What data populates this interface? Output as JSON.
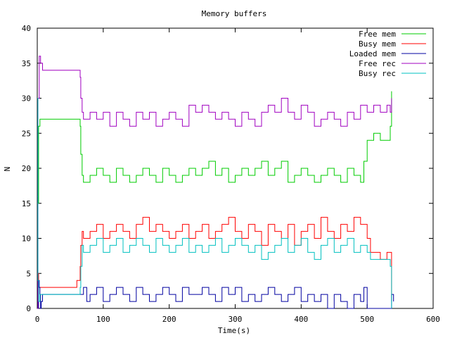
{
  "chart_data": {
    "type": "line",
    "title": "Memory buffers",
    "xlabel": "Time(s)",
    "ylabel": "N",
    "xlim": [
      0,
      600
    ],
    "ylim": [
      0,
      40
    ],
    "xticks": [
      "0",
      "100",
      "200",
      "300",
      "400",
      "500",
      "600"
    ],
    "yticks": [
      "0",
      "5",
      "10",
      "15",
      "20",
      "25",
      "30",
      "35",
      "40"
    ],
    "grid": false,
    "legend_position": "top-right",
    "series": [
      {
        "name": "Free mem",
        "color": "#00cc00",
        "x": [
          0,
          2,
          4,
          10,
          20,
          40,
          60,
          65,
          66,
          68,
          70,
          80,
          90,
          100,
          110,
          120,
          130,
          140,
          150,
          160,
          170,
          180,
          190,
          200,
          210,
          220,
          230,
          240,
          250,
          260,
          270,
          280,
          290,
          300,
          310,
          320,
          330,
          340,
          350,
          360,
          370,
          380,
          390,
          400,
          410,
          420,
          430,
          440,
          450,
          460,
          470,
          480,
          490,
          495,
          500,
          510,
          520,
          530,
          535,
          537
        ],
        "y": [
          15,
          26,
          27,
          27,
          27,
          27,
          27,
          26,
          22,
          19,
          18,
          19,
          20,
          19,
          18,
          20,
          19,
          18,
          19,
          20,
          19,
          18,
          20,
          19,
          18,
          19,
          20,
          19,
          20,
          21,
          19,
          20,
          18,
          19,
          20,
          19,
          20,
          21,
          19,
          20,
          21,
          18,
          19,
          20,
          19,
          18,
          19,
          20,
          19,
          18,
          20,
          19,
          18,
          21,
          24,
          25,
          24,
          24,
          26,
          31
        ]
      },
      {
        "name": "Busy mem",
        "color": "#ff0000",
        "x": [
          0,
          2,
          4,
          20,
          40,
          55,
          60,
          65,
          66,
          68,
          70,
          80,
          90,
          100,
          110,
          120,
          130,
          140,
          150,
          160,
          170,
          180,
          190,
          200,
          210,
          220,
          230,
          240,
          250,
          260,
          270,
          280,
          290,
          300,
          310,
          320,
          330,
          340,
          350,
          360,
          370,
          380,
          390,
          400,
          410,
          420,
          430,
          440,
          450,
          460,
          470,
          480,
          490,
          500,
          505,
          510,
          520,
          530,
          535,
          537
        ],
        "y": [
          5,
          3,
          3,
          3,
          3,
          3,
          4,
          6,
          9,
          11,
          10,
          11,
          12,
          10,
          11,
          12,
          11,
          10,
          12,
          13,
          11,
          12,
          11,
          10,
          11,
          12,
          10,
          11,
          12,
          10,
          11,
          12,
          13,
          11,
          10,
          12,
          11,
          9,
          12,
          11,
          10,
          12,
          9,
          11,
          12,
          10,
          13,
          11,
          10,
          12,
          11,
          13,
          12,
          10,
          8,
          8,
          7,
          8,
          8,
          1
        ]
      },
      {
        "name": "Loaded mem",
        "color": "#0000a0",
        "x": [
          0,
          1,
          2,
          3,
          4,
          5,
          6,
          8,
          10,
          20,
          40,
          60,
          65,
          70,
          75,
          80,
          90,
          100,
          110,
          120,
          130,
          140,
          150,
          160,
          170,
          180,
          190,
          200,
          210,
          220,
          230,
          240,
          250,
          260,
          270,
          280,
          290,
          300,
          310,
          320,
          330,
          340,
          350,
          360,
          370,
          380,
          390,
          400,
          410,
          420,
          430,
          440,
          450,
          460,
          470,
          480,
          490,
          495,
          500,
          505,
          510,
          520,
          530,
          535,
          537,
          540
        ],
        "y": [
          16,
          0,
          4,
          3,
          2,
          0,
          1,
          2,
          2,
          2,
          2,
          2,
          2,
          3,
          1,
          2,
          3,
          1,
          2,
          3,
          2,
          1,
          3,
          2,
          1,
          2,
          3,
          2,
          1,
          3,
          2,
          2,
          3,
          2,
          1,
          3,
          2,
          3,
          1,
          2,
          1,
          2,
          3,
          2,
          1,
          2,
          3,
          1,
          2,
          1,
          2,
          0,
          2,
          1,
          0,
          2,
          1,
          3,
          0,
          0,
          0,
          0,
          0,
          0,
          2,
          1
        ]
      },
      {
        "name": "Free rec",
        "color": "#a000c0",
        "x": [
          0,
          1,
          3,
          5,
          8,
          10,
          20,
          40,
          60,
          65,
          66,
          68,
          70,
          80,
          90,
          100,
          110,
          120,
          130,
          140,
          150,
          160,
          170,
          180,
          190,
          200,
          210,
          220,
          230,
          240,
          250,
          260,
          270,
          280,
          290,
          300,
          310,
          320,
          330,
          340,
          350,
          360,
          370,
          380,
          390,
          400,
          410,
          420,
          430,
          440,
          450,
          460,
          470,
          480,
          490,
          500,
          510,
          520,
          530,
          535,
          537
        ],
        "y": [
          0,
          30,
          36,
          35,
          34,
          34,
          34,
          34,
          34,
          33,
          30,
          28,
          27,
          28,
          27,
          28,
          26,
          28,
          27,
          26,
          28,
          27,
          28,
          26,
          27,
          28,
          27,
          26,
          29,
          28,
          29,
          28,
          27,
          28,
          27,
          26,
          28,
          27,
          26,
          28,
          29,
          28,
          30,
          28,
          27,
          29,
          28,
          26,
          27,
          28,
          27,
          26,
          28,
          27,
          29,
          28,
          29,
          28,
          29,
          28,
          30
        ]
      },
      {
        "name": "Busy rec",
        "color": "#00c0c0",
        "x": [
          0,
          1,
          2,
          4,
          6,
          10,
          20,
          40,
          60,
          65,
          66,
          68,
          70,
          80,
          90,
          100,
          110,
          120,
          130,
          140,
          150,
          160,
          170,
          180,
          190,
          200,
          210,
          220,
          230,
          240,
          250,
          260,
          270,
          280,
          290,
          300,
          310,
          320,
          330,
          340,
          350,
          360,
          370,
          380,
          390,
          400,
          410,
          420,
          430,
          440,
          450,
          460,
          470,
          480,
          490,
          500,
          505,
          510,
          520,
          530,
          535,
          537
        ],
        "y": [
          30,
          4,
          1,
          2,
          2,
          2,
          2,
          2,
          2,
          3,
          6,
          9,
          8,
          9,
          10,
          8,
          9,
          10,
          8,
          9,
          10,
          9,
          8,
          10,
          9,
          8,
          9,
          10,
          8,
          9,
          8,
          9,
          10,
          8,
          9,
          10,
          9,
          8,
          9,
          7,
          8,
          9,
          10,
          8,
          9,
          10,
          8,
          7,
          9,
          10,
          8,
          9,
          10,
          8,
          9,
          8,
          7,
          7,
          7,
          7,
          6,
          0
        ]
      }
    ]
  }
}
